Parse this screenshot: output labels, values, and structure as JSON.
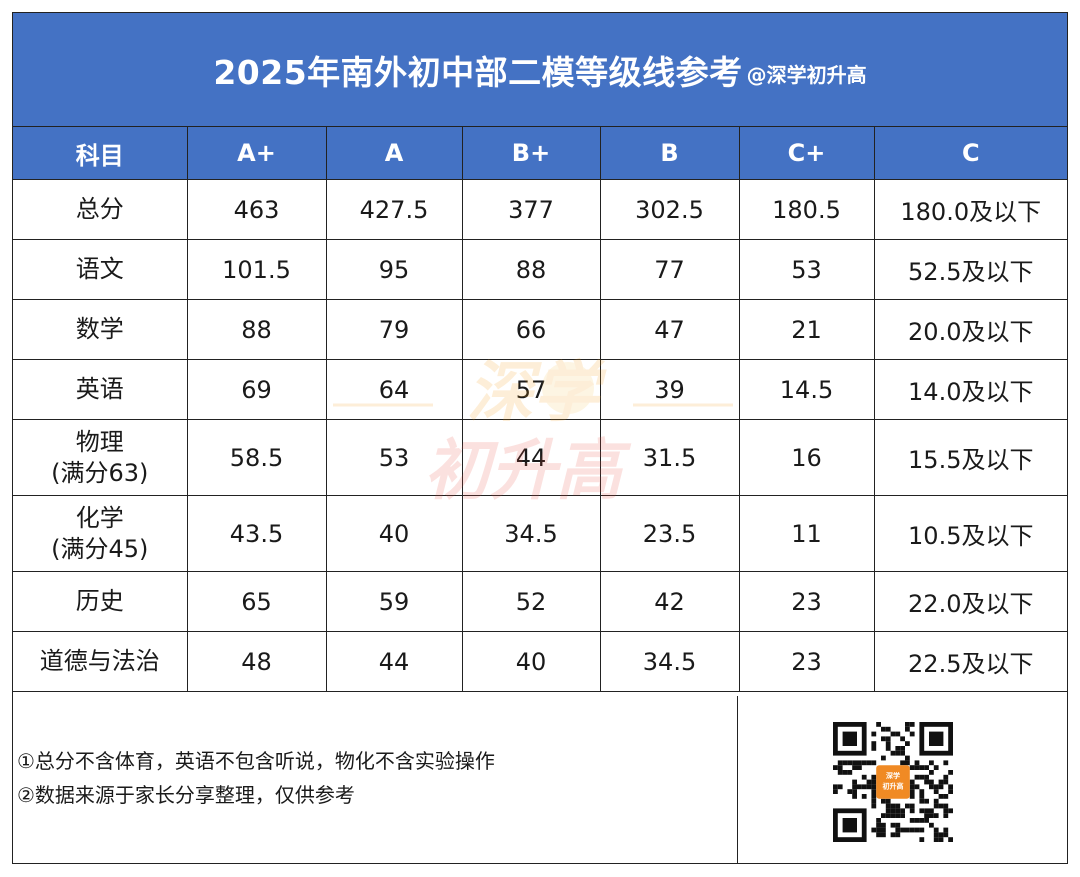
{
  "title": {
    "main": "2025年南外初中部二模等级线参考",
    "handle": "@深学初升高"
  },
  "table": {
    "headers": [
      "科目",
      "A+",
      "A",
      "B+",
      "B",
      "C+",
      "C"
    ],
    "rows": [
      {
        "subject": "总分",
        "note": "",
        "values": [
          "463",
          "427.5",
          "377",
          "302.5",
          "180.5",
          "180.0及以下"
        ]
      },
      {
        "subject": "语文",
        "note": "",
        "values": [
          "101.5",
          "95",
          "88",
          "77",
          "53",
          "52.5及以下"
        ]
      },
      {
        "subject": "数学",
        "note": "",
        "values": [
          "88",
          "79",
          "66",
          "47",
          "21",
          "20.0及以下"
        ]
      },
      {
        "subject": "英语",
        "note": "",
        "values": [
          "69",
          "64",
          "57",
          "39",
          "14.5",
          "14.0及以下"
        ]
      },
      {
        "subject": "物理",
        "note": "(满分63)",
        "values": [
          "58.5",
          "53",
          "44",
          "31.5",
          "16",
          "15.5及以下"
        ]
      },
      {
        "subject": "化学",
        "note": "(满分45)",
        "values": [
          "43.5",
          "40",
          "34.5",
          "23.5",
          "11",
          "10.5及以下"
        ]
      },
      {
        "subject": "历史",
        "note": "",
        "values": [
          "65",
          "59",
          "52",
          "42",
          "23",
          "22.0及以下"
        ]
      },
      {
        "subject": "道德与法治",
        "note": "",
        "values": [
          "48",
          "44",
          "40",
          "34.5",
          "23",
          "22.5及以下"
        ]
      }
    ]
  },
  "notes": [
    "①总分不含体育，英语不包含听说，物化不含实验操作",
    "②数据来源于家长分享整理，仅供参考"
  ],
  "watermark": {
    "line1": "深学",
    "line2": "初升高"
  },
  "qr": {
    "badge_line1": "深学",
    "badge_line2": "初升高"
  },
  "colors": {
    "header_bg": "#4472c4",
    "header_text": "#ffffff",
    "watermark": "#f39c12",
    "badge": "#f08a24"
  }
}
